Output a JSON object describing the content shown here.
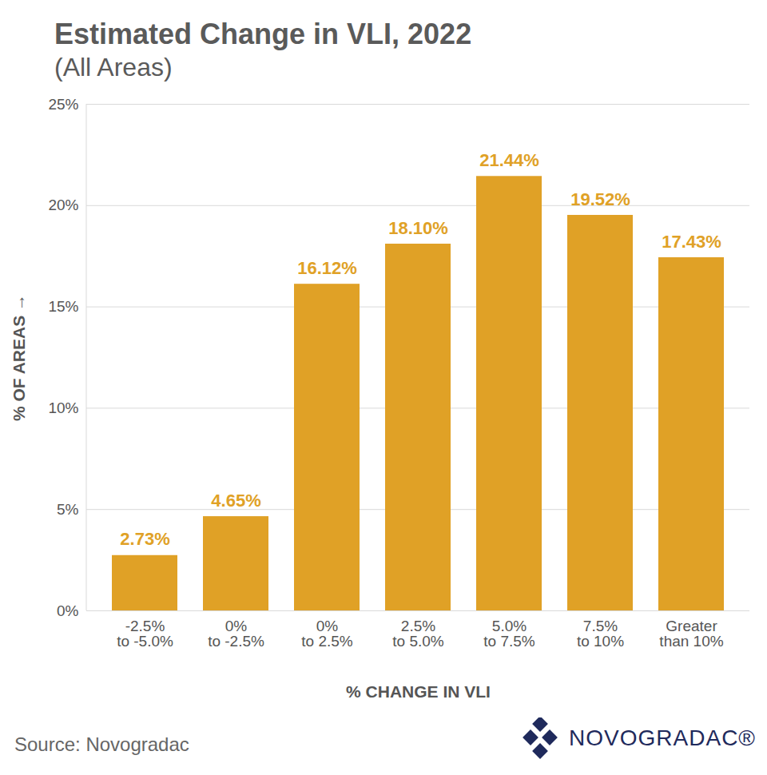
{
  "chart_data": {
    "type": "bar",
    "title": "Estimated Change in VLI, 2022",
    "subtitle": "(All Areas)",
    "x_label": "% CHANGE IN VLI",
    "y_label": "% OF AREAS",
    "categories": [
      "-2.5%\nto -5.0%",
      "0%\nto -2.5%",
      "0%\nto 2.5%",
      "2.5%\nto 5.0%",
      "5.0%\nto 7.5%",
      "7.5%\nto 10%",
      "Greater\nthan 10%"
    ],
    "values": [
      2.73,
      4.65,
      16.12,
      18.1,
      21.44,
      19.52,
      17.43
    ],
    "value_labels": [
      "2.73%",
      "4.65%",
      "16.12%",
      "18.10%",
      "21.44%",
      "19.52%",
      "17.43%"
    ],
    "color": "#e0a126",
    "ylim": [
      0,
      25
    ],
    "yticks": [
      {
        "value": 0,
        "label": "0%"
      },
      {
        "value": 5,
        "label": "5%"
      },
      {
        "value": 10,
        "label": "10%"
      },
      {
        "value": 15,
        "label": "15%"
      },
      {
        "value": 20,
        "label": "20%"
      },
      {
        "value": 25,
        "label": "25%"
      }
    ],
    "grid": true,
    "data_labels": true,
    "source": "Source: Novogradac",
    "logo": "NOVOGRADAC®"
  }
}
